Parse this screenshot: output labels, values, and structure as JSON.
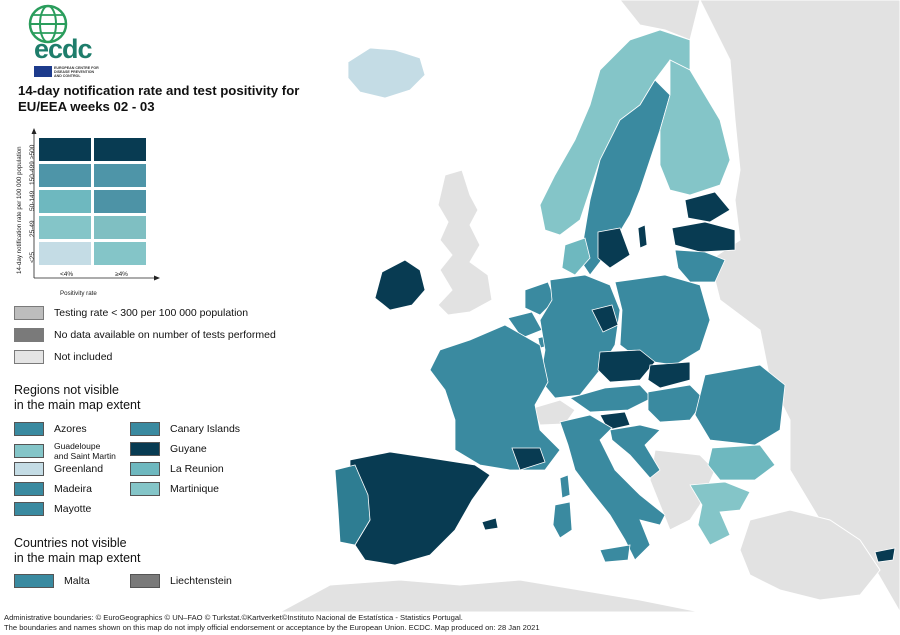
{
  "logo": {
    "text": "ecdc",
    "subtitle": "EUROPEAN CENTRE FOR DISEASE PREVENTION AND CONTROL"
  },
  "title": "14-day notification rate and test positivity for EU/EEA weeks 02 - 03",
  "colors": {
    "sea": "#ffffff",
    "non_eu": "#e2e2e2",
    "border": "#ffffff",
    "c1": "#c4dce5",
    "c2": "#84c5c8",
    "c3": "#6eb8bf",
    "c4": "#5a9fae",
    "c5": "#3a8aa0",
    "c6": "#2e7d92",
    "c7": "#083b52",
    "grey_light": "#bdbdbd",
    "grey_dark": "#7a7a7a",
    "not_included": "#e4e4e4"
  },
  "matrix": {
    "y_axis_title": "14-day notification rate per 100 000 population",
    "x_axis_title": "Positivity rate",
    "y_labels": [
      "≥500",
      "150-499",
      "50-149",
      "25-49",
      "<25"
    ],
    "x_labels": [
      "<4%",
      "≥4%"
    ],
    "cells": [
      [
        "#083b52",
        "#083b52"
      ],
      [
        "#4e95a8",
        "#4e95a8"
      ],
      [
        "#6eb8bf",
        "#4d93a6"
      ],
      [
        "#84c5c8",
        "#7fbfc2"
      ],
      [
        "#c4dce5",
        "#84c5c8"
      ]
    ]
  },
  "legend": {
    "items": [
      {
        "label": "Testing rate < 300 per 100 000 population",
        "color": "#bdbdbd"
      },
      {
        "label": "No data available on number of tests performed",
        "color": "#7a7a7a"
      },
      {
        "label": "Not included",
        "color": "#e4e4e4"
      }
    ]
  },
  "regions": {
    "title": "Regions not visible in the main map extent",
    "title_line1": "Regions not visible",
    "title_line2": "in the main map extent",
    "left": [
      {
        "label": "Azores",
        "color": "#3a8aa0"
      },
      {
        "label": "Guadeloupe and Saint Martin",
        "line1": "Guadeloupe",
        "line2": "and Saint Martin",
        "color": "#84c5c8"
      },
      {
        "label": "Greenland",
        "color": "#c4dce5"
      },
      {
        "label": "Madeira",
        "color": "#3a8aa0"
      },
      {
        "label": "Mayotte",
        "color": "#3a8aa0"
      }
    ],
    "right": [
      {
        "label": "Canary Islands",
        "color": "#3a8aa0"
      },
      {
        "label": "Guyane",
        "color": "#083b52"
      },
      {
        "label": "La Reunion",
        "color": "#6eb8bf"
      },
      {
        "label": "Martinique",
        "color": "#84c5c8"
      }
    ]
  },
  "countries": {
    "title_line1": "Countries not visible",
    "title_line2": "in the main map extent",
    "items": [
      {
        "label": "Malta",
        "color": "#3a8aa0"
      },
      {
        "label": "Liechtenstein",
        "color": "#7a7a7a"
      }
    ]
  },
  "footer": {
    "line1": "Administrative boundaries: © EuroGeographics © UN–FAO © Turkstat.©Kartverket©Instituto Nacional de Estatística - Statistics Portugal.",
    "line2": "The boundaries and names shown on this map do not imply official endorsement or acceptance by the European Union. ECDC. Map produced on: 28 Jan 2021"
  }
}
